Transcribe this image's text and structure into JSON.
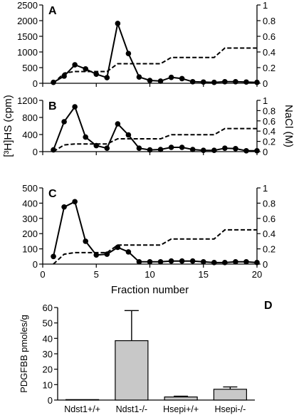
{
  "chart_data": [
    {
      "panel": "A",
      "type": "line",
      "ylim": [
        0,
        2500
      ],
      "yticks": [
        "0",
        "500",
        "1000",
        "1500",
        "2000",
        "2500"
      ],
      "y2lim": [
        0,
        1
      ],
      "y2ticks": [
        "0",
        "0.2",
        "0.4",
        "0.6",
        "0.8",
        "1"
      ],
      "x": [
        1,
        2,
        3,
        4,
        5,
        6,
        7,
        8,
        9,
        10,
        11,
        12,
        13,
        14,
        15,
        16,
        17,
        18,
        19,
        20
      ],
      "series": [
        {
          "values": [
            30,
            230,
            590,
            460,
            290,
            180,
            1910,
            950,
            200,
            90,
            70,
            190,
            150,
            50,
            40,
            30,
            50,
            50,
            40,
            30
          ]
        },
        {
          "values": [
            0,
            0.13,
            0.15,
            0.15,
            0.15,
            0.15,
            0.25,
            0.25,
            0.25,
            0.25,
            0.25,
            0.33,
            0.33,
            0.33,
            0.33,
            0.33,
            0.45,
            0.45,
            0.45,
            0.45
          ]
        }
      ]
    },
    {
      "panel": "B",
      "type": "line",
      "ylim": [
        0,
        1200
      ],
      "yticks": [
        "0",
        "400",
        "800",
        "1200"
      ],
      "y2lim": [
        0,
        1
      ],
      "y2ticks": [
        "0",
        "0.2",
        "0.4",
        "0.6",
        "0.8",
        "1"
      ],
      "ylabel": "[³H]HS (cpm)",
      "y2label": "NaCl (M)",
      "x": [
        1,
        2,
        3,
        4,
        5,
        6,
        7,
        8,
        9,
        10,
        11,
        12,
        13,
        14,
        15,
        16,
        17,
        18,
        19,
        20
      ],
      "series": [
        {
          "values": [
            40,
            700,
            1050,
            340,
            140,
            80,
            650,
            390,
            80,
            40,
            50,
            100,
            100,
            50,
            30,
            30,
            80,
            70,
            20,
            20
          ]
        },
        {
          "values": [
            0,
            0.13,
            0.15,
            0.15,
            0.15,
            0.15,
            0.25,
            0.25,
            0.25,
            0.25,
            0.25,
            0.33,
            0.33,
            0.33,
            0.33,
            0.33,
            0.45,
            0.45,
            0.45,
            0.45
          ]
        }
      ]
    },
    {
      "panel": "C",
      "type": "line",
      "ylim": [
        0,
        500
      ],
      "yticks": [
        "0",
        "100",
        "200",
        "300",
        "400",
        "500"
      ],
      "y2lim": [
        0,
        1
      ],
      "y2ticks": [
        "0",
        "0.2",
        "0.4",
        "0.6",
        "0.8",
        "1"
      ],
      "xlim": [
        0,
        20
      ],
      "xticks": [
        "0",
        "5",
        "10",
        "15",
        "20"
      ],
      "xlabel": "Fraction number",
      "x": [
        1,
        2,
        3,
        4,
        5,
        6,
        7,
        8,
        9,
        10,
        11,
        12,
        13,
        14,
        15,
        16,
        17,
        18,
        19,
        20
      ],
      "series": [
        {
          "values": [
            50,
            375,
            410,
            150,
            60,
            65,
            110,
            80,
            15,
            15,
            15,
            20,
            20,
            20,
            15,
            10,
            10,
            15,
            15,
            10
          ]
        },
        {
          "values": [
            0,
            0.13,
            0.15,
            0.15,
            0.15,
            0.15,
            0.25,
            0.25,
            0.25,
            0.25,
            0.25,
            0.33,
            0.33,
            0.33,
            0.33,
            0.33,
            0.45,
            0.45,
            0.45,
            0.45
          ]
        }
      ]
    },
    {
      "panel": "D",
      "type": "bar",
      "ylabel": "PDGFBB pmoles/g",
      "ylim": [
        0,
        60
      ],
      "yticks": [
        "0",
        "10",
        "20",
        "30",
        "40",
        "50",
        "60"
      ],
      "categories": [
        "Ndst1+/+",
        "Ndst1-/-",
        "Hsepi+/+",
        "Hsepi-/-"
      ],
      "values": [
        0.3,
        38.5,
        2,
        7
      ],
      "errors": [
        0,
        19.5,
        0.5,
        1.5
      ]
    }
  ]
}
